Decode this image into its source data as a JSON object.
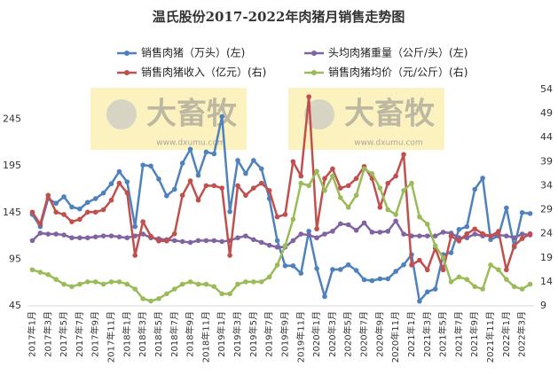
{
  "chart_data": {
    "type": "line",
    "title": "温氏股份2017-2022年肉猪月销售走势图",
    "watermark": {
      "name": "大畜牧",
      "url": "www.dxumu.com"
    },
    "categories": [
      "2017年1月",
      null,
      "2017年3月",
      null,
      "2017年5月",
      null,
      "2017年7月",
      null,
      "2017年9月",
      null,
      "2017年11月",
      null,
      "2018年1月",
      null,
      "2018年3月",
      null,
      "2018年5月",
      null,
      "2018年7月",
      null,
      "2018年9月",
      null,
      "2018年11月",
      null,
      "2019年1月",
      null,
      "2019年3月",
      null,
      "2019年5月",
      null,
      "2019年7月",
      null,
      "2019年9月",
      null,
      "2019年11月",
      null,
      "2020年1月",
      null,
      "2020年3月",
      null,
      "2020年5月",
      null,
      "2020年7月",
      null,
      "2020年9月",
      null,
      "2020年11月",
      null,
      "2021年1月",
      null,
      "2021年3月",
      null,
      "2021年5月",
      null,
      "2021年7月",
      null,
      "2021年9月",
      null,
      "2021年11月",
      null,
      "2022年1月",
      null,
      "2022年3月",
      null
    ],
    "series": [
      {
        "name": "销售肉猪（万头）(左)",
        "color": "#4f81bd",
        "axis": "y",
        "values": [
          143,
          130,
          160,
          155,
          162,
          151,
          149,
          156,
          160,
          166,
          176,
          189,
          178,
          130,
          196,
          195,
          181,
          163,
          170,
          198,
          213,
          185,
          210,
          208,
          248,
          146,
          201,
          187,
          201,
          192,
          160,
          115,
          88,
          88,
          80,
          125,
          85,
          55,
          84,
          84,
          89,
          83,
          73,
          72,
          74,
          74,
          82,
          89,
          100,
          50,
          60,
          63,
          100,
          102,
          127,
          130,
          170,
          182,
          116,
          120,
          150,
          108,
          145,
          144
        ]
      },
      {
        "name": "头均肉猪重量（公斤/头）(左)",
        "color": "#8064a2",
        "axis": "y",
        "values": [
          115,
          123,
          122,
          122,
          121,
          118,
          118,
          118,
          119,
          120,
          120,
          119,
          118,
          120,
          122,
          118,
          117,
          116,
          115,
          114,
          113,
          115,
          115,
          115,
          114,
          115,
          118,
          120,
          116,
          113,
          110,
          108,
          108,
          115,
          122,
          121,
          118,
          122,
          125,
          133,
          132,
          126,
          134,
          124,
          124,
          125,
          136,
          122,
          120,
          120,
          120,
          120,
          124,
          123,
          118,
          118,
          122,
          120,
          120,
          121,
          120,
          118,
          122,
          121
        ]
      },
      {
        "name": "销售肉猪收入（亿元）(右)",
        "color": "#c0504d",
        "axis": "y2",
        "values": [
          28.5,
          26,
          32,
          28.5,
          28,
          26.5,
          27,
          28.5,
          28.5,
          29,
          31,
          34.5,
          32.5,
          19.5,
          26.5,
          23.5,
          22.5,
          22.5,
          24,
          32,
          35,
          31,
          34,
          34,
          33.5,
          19.5,
          34,
          32,
          33.5,
          34.5,
          33,
          27.5,
          28,
          39,
          36,
          52.5,
          25,
          35.5,
          37.5,
          33.5,
          34,
          35.5,
          38,
          35.5,
          29.5,
          34.5,
          36,
          40.5,
          17.5,
          18.5,
          16.5,
          21,
          16.5,
          23.5,
          22.5,
          24,
          25,
          24,
          23.5,
          24.5,
          16.5,
          21.5,
          23,
          24
        ]
      },
      {
        "name": "销售肉猪均价（元/公斤）(右)",
        "color": "#9bbb59",
        "axis": "y2",
        "values": [
          16.5,
          16,
          15.5,
          14.5,
          13.5,
          13,
          13.5,
          14,
          14,
          13.5,
          14,
          14,
          13.5,
          12.5,
          10.5,
          10,
          10.5,
          11.5,
          12.5,
          13.5,
          14,
          13.5,
          13.5,
          13,
          11.5,
          11.5,
          13.5,
          14,
          14,
          14,
          15,
          17.5,
          21.5,
          27,
          34.5,
          34,
          37,
          33,
          36,
          31.5,
          29.5,
          32,
          37.5,
          36.5,
          33.5,
          29,
          28,
          33,
          34.5,
          27.5,
          26,
          21.5,
          19,
          14,
          15,
          14.5,
          13,
          12.5,
          17.5,
          16.5,
          14.5,
          13,
          12.5,
          13.5
        ]
      }
    ],
    "ylim": [
      45,
      277
    ],
    "yticks": [
      45,
      95,
      145,
      195,
      245
    ],
    "y2lim": [
      9,
      54
    ],
    "y2ticks": [
      9,
      14,
      19,
      24,
      29,
      34,
      39,
      44,
      49,
      54
    ],
    "grid": false
  }
}
